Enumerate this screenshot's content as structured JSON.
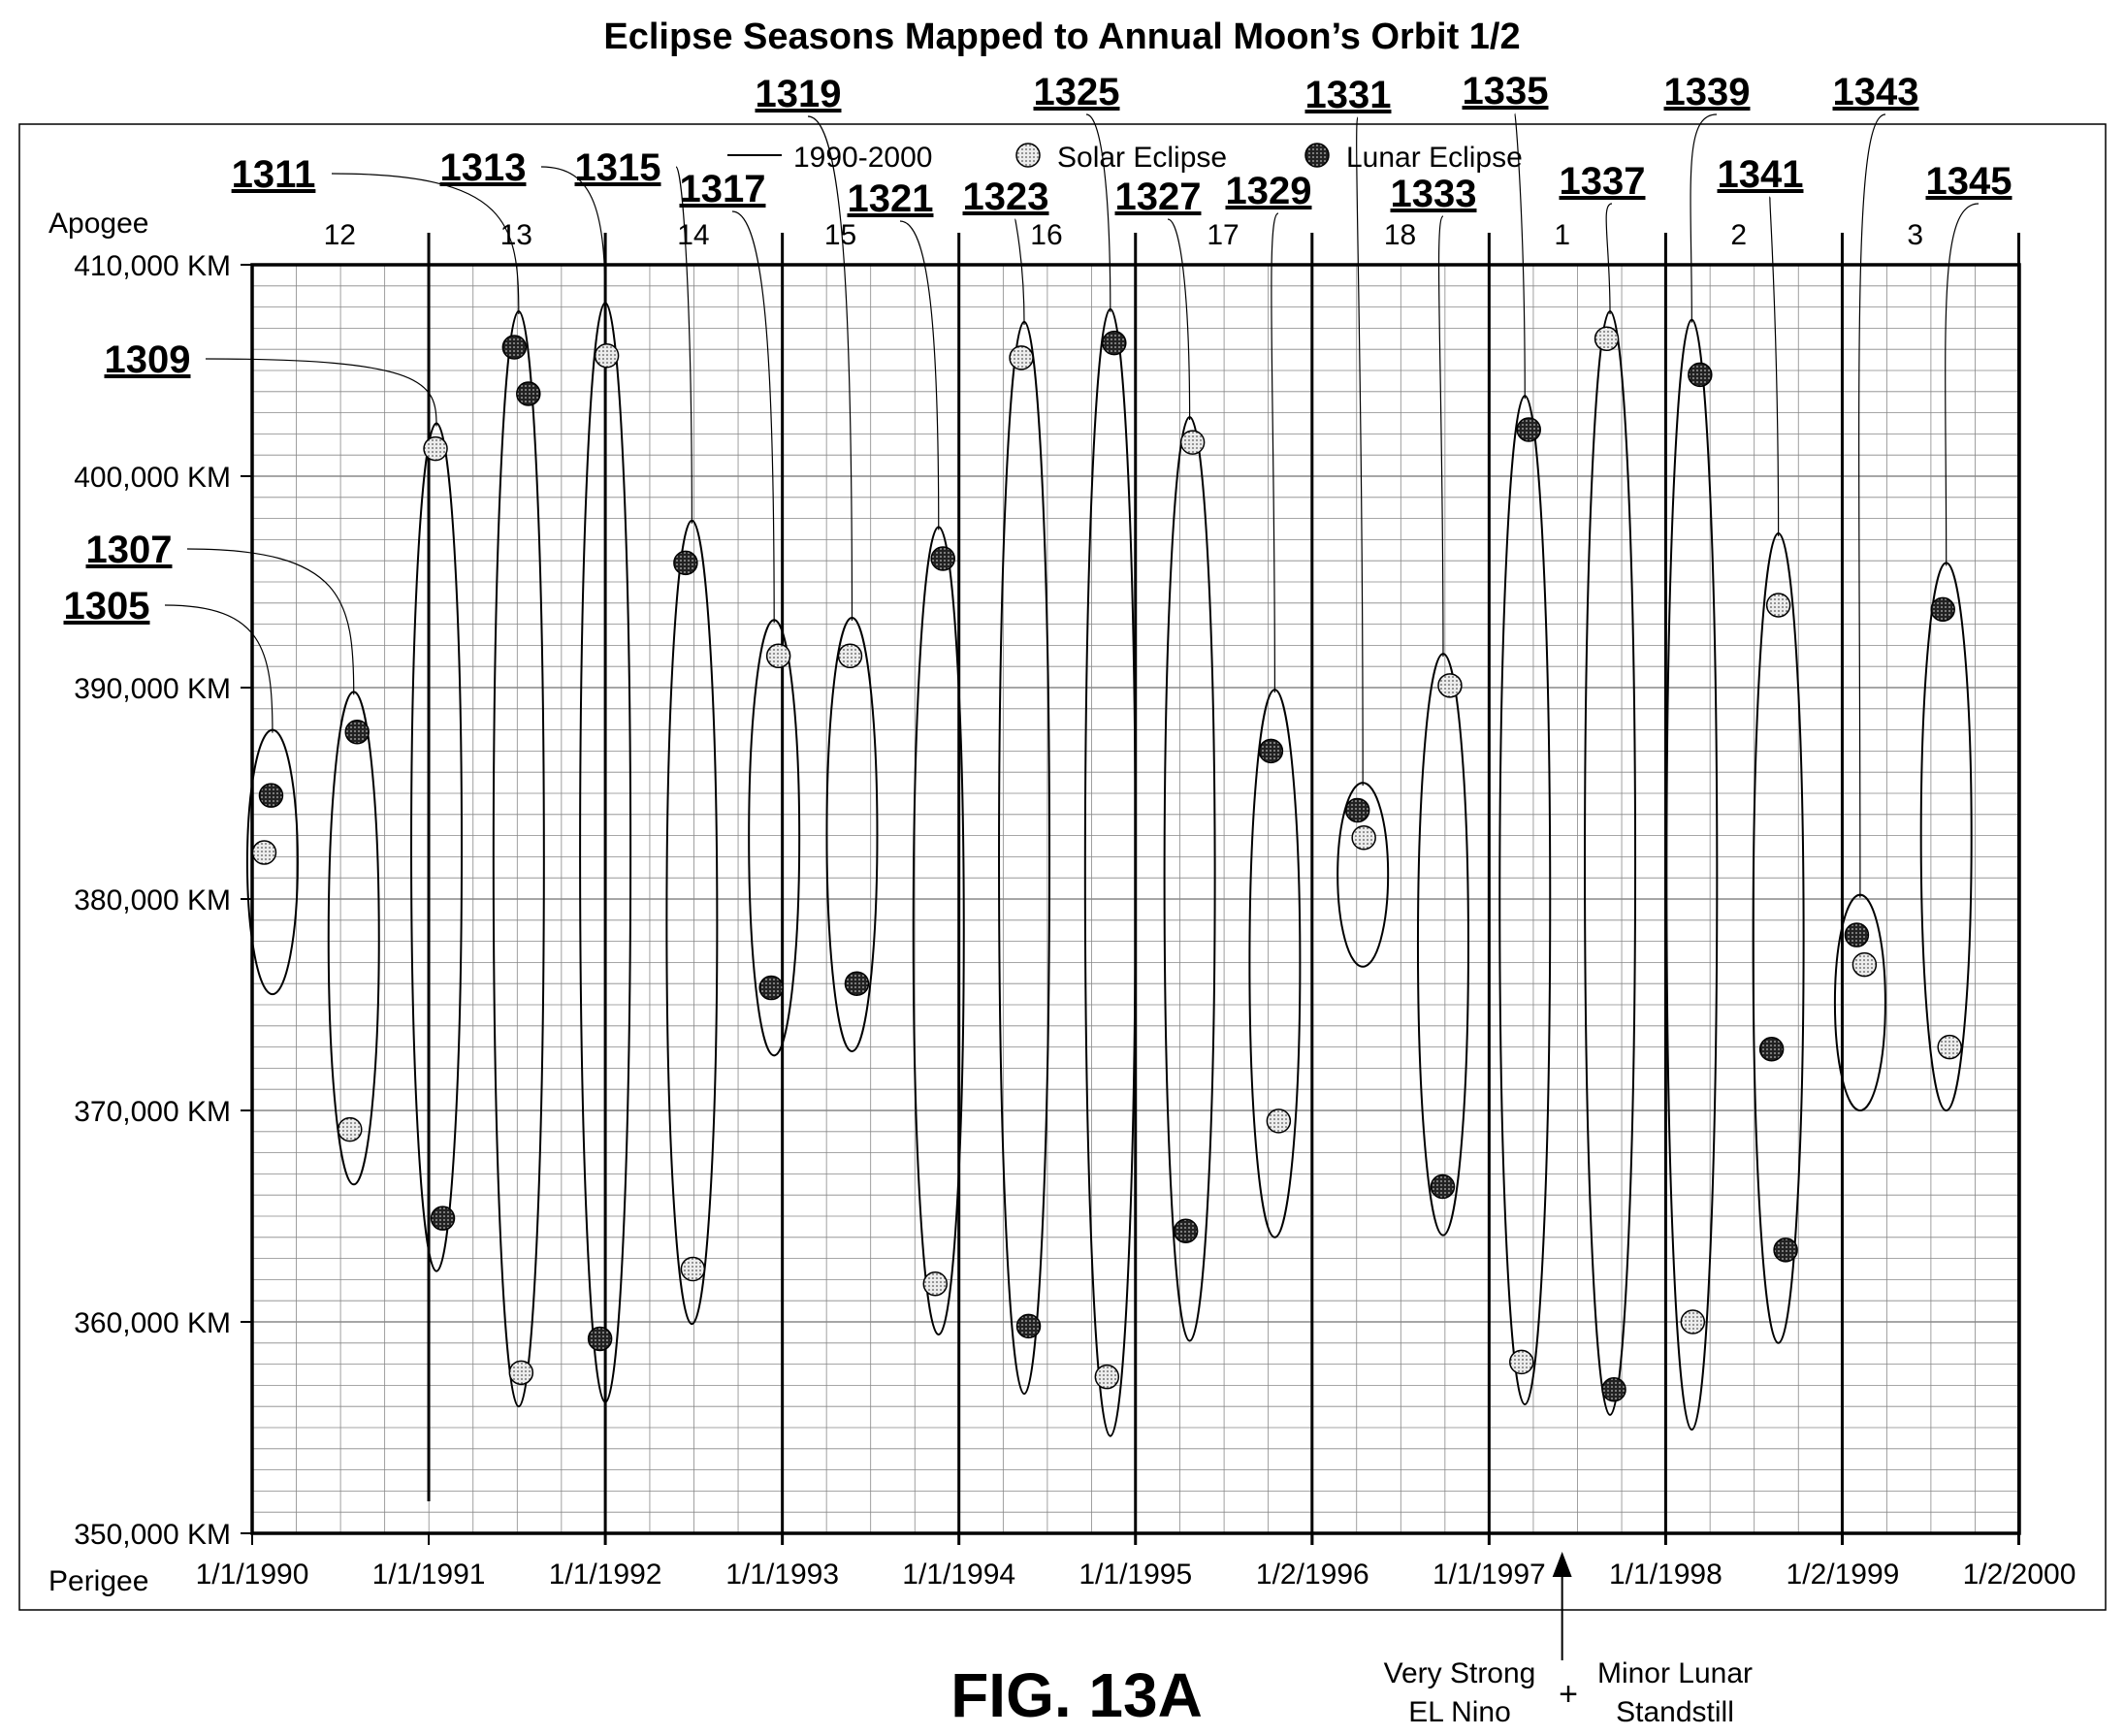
{
  "chart_data": {
    "type": "scatter",
    "title": "Eclipse Seasons Mapped to Annual Moon’s Orbit 1/2",
    "figure_label": "FIG. 13A",
    "y_top_label": "Apogee",
    "x_left_label": "Perigee",
    "ylim": [
      350000,
      410000
    ],
    "yticks": [
      {
        "value": 350000,
        "label": "350,000 KM"
      },
      {
        "value": 360000,
        "label": "360,000 KM"
      },
      {
        "value": 370000,
        "label": "370,000 KM"
      },
      {
        "value": 380000,
        "label": "380,000 KM"
      },
      {
        "value": 390000,
        "label": "390,000 KM"
      },
      {
        "value": 400000,
        "label": "400,000 KM"
      },
      {
        "value": 410000,
        "label": "410,000 KM"
      }
    ],
    "xlim": [
      "1990-01-01",
      "2000-01-02"
    ],
    "xticks": [
      {
        "value": "1990-01-01",
        "label": "1/1/1990"
      },
      {
        "value": "1991-01-01",
        "label": "1/1/1991"
      },
      {
        "value": "1992-01-01",
        "label": "1/1/1992"
      },
      {
        "value": "1993-01-01",
        "label": "1/1/1993"
      },
      {
        "value": "1994-01-01",
        "label": "1/1/1994"
      },
      {
        "value": "1995-01-01",
        "label": "1/1/1995"
      },
      {
        "value": "1996-01-02",
        "label": "1/2/1996"
      },
      {
        "value": "1997-01-01",
        "label": "1/1/1997"
      },
      {
        "value": "1998-01-01",
        "label": "1/1/1998"
      },
      {
        "value": "1999-01-02",
        "label": "1/2/1999"
      },
      {
        "value": "2000-01-02",
        "label": "1/2/2000"
      }
    ],
    "grid": true,
    "legend": {
      "position": "top",
      "items": [
        {
          "label": "1990-2000",
          "marker": "line"
        },
        {
          "label": "Solar Eclipse",
          "marker": "light-dotted-circle"
        },
        {
          "label": "Lunar Eclipse",
          "marker": "dark-dotted-circle"
        }
      ]
    },
    "cycle_markers": [
      {
        "label": "12",
        "date": "1990-07-01"
      },
      {
        "label": "13",
        "date": "1991-07-01"
      },
      {
        "label": "14",
        "date": "1992-07-01"
      },
      {
        "label": "15",
        "date": "1993-05-01"
      },
      {
        "label": "16",
        "date": "1994-07-01"
      },
      {
        "label": "17",
        "date": "1995-07-01"
      },
      {
        "label": "18",
        "date": "1996-07-01"
      },
      {
        "label": "1",
        "date": "1997-06-01"
      },
      {
        "label": "2",
        "date": "1998-06-01"
      },
      {
        "label": "3",
        "date": "1999-06-01"
      }
    ],
    "season_lines": [
      "1991-01-01",
      "1992-01-01",
      "1993-01-01",
      "1994-01-01",
      "1995-01-01",
      "1996-01-01",
      "1997-01-01",
      "1998-01-01",
      "1999-01-01",
      "2000-01-01"
    ],
    "eclipse_seasons": [
      {
        "ref": "1305",
        "date_center": "1990-02-12",
        "km_min": 375500,
        "km_max": 388000,
        "eclipses": [
          {
            "kind": "solar",
            "date": "1990-01-26",
            "km": 382200
          },
          {
            "kind": "lunar",
            "date": "1990-02-09",
            "km": 384900
          }
        ]
      },
      {
        "ref": "1307",
        "date_center": "1990-07-30",
        "km_min": 366500,
        "km_max": 389800,
        "eclipses": [
          {
            "kind": "solar",
            "date": "1990-07-22",
            "km": 369100
          },
          {
            "kind": "lunar",
            "date": "1990-08-06",
            "km": 387900
          }
        ]
      },
      {
        "ref": "1309",
        "date_center": "1991-01-17",
        "km_min": 362400,
        "km_max": 402500,
        "eclipses": [
          {
            "kind": "solar",
            "date": "1991-01-15",
            "km": 401300
          },
          {
            "kind": "lunar",
            "date": "1991-01-30",
            "km": 364900
          }
        ]
      },
      {
        "ref": "1311",
        "date_center": "1991-07-06",
        "km_min": 356000,
        "km_max": 407800,
        "eclipses": [
          {
            "kind": "solar",
            "date": "1991-07-11",
            "km": 357600
          },
          {
            "kind": "lunar",
            "date": "1991-06-27",
            "km": 406100
          },
          {
            "kind": "lunar",
            "date": "1991-07-26",
            "km": 403900
          }
        ]
      },
      {
        "ref": "1313",
        "date_center": "1992-01-01",
        "km_min": 356200,
        "km_max": 408200,
        "eclipses": [
          {
            "kind": "solar",
            "date": "1992-01-04",
            "km": 405700
          },
          {
            "kind": "lunar",
            "date": "1991-12-21",
            "km": 359200
          }
        ]
      },
      {
        "ref": "1315",
        "date_center": "1992-06-28",
        "km_min": 359900,
        "km_max": 397900,
        "eclipses": [
          {
            "kind": "solar",
            "date": "1992-06-30",
            "km": 362500
          },
          {
            "kind": "lunar",
            "date": "1992-06-15",
            "km": 395900
          }
        ]
      },
      {
        "ref": "1317",
        "date_center": "1992-12-15",
        "km_min": 372600,
        "km_max": 393200,
        "eclipses": [
          {
            "kind": "solar",
            "date": "1992-12-24",
            "km": 391500
          },
          {
            "kind": "lunar",
            "date": "1992-12-09",
            "km": 375800
          }
        ]
      },
      {
        "ref": "1319",
        "date_center": "1993-05-25",
        "km_min": 372800,
        "km_max": 393300,
        "eclipses": [
          {
            "kind": "solar",
            "date": "1993-05-21",
            "km": 391500
          },
          {
            "kind": "lunar",
            "date": "1993-06-04",
            "km": 376000
          }
        ]
      },
      {
        "ref": "1321",
        "date_center": "1993-11-20",
        "km_min": 359400,
        "km_max": 397600,
        "eclipses": [
          {
            "kind": "solar",
            "date": "1993-11-13",
            "km": 361800
          },
          {
            "kind": "lunar",
            "date": "1993-11-29",
            "km": 396100
          }
        ]
      },
      {
        "ref": "1323",
        "date_center": "1994-05-16",
        "km_min": 356600,
        "km_max": 407300,
        "eclipses": [
          {
            "kind": "solar",
            "date": "1994-05-10",
            "km": 405600
          },
          {
            "kind": "lunar",
            "date": "1994-05-25",
            "km": 359800
          }
        ]
      },
      {
        "ref": "1325",
        "date_center": "1994-11-10",
        "km_min": 354600,
        "km_max": 407900,
        "eclipses": [
          {
            "kind": "solar",
            "date": "1994-11-03",
            "km": 357400
          },
          {
            "kind": "lunar",
            "date": "1994-11-18",
            "km": 406300
          }
        ]
      },
      {
        "ref": "1327",
        "date_center": "1995-04-23",
        "km_min": 359100,
        "km_max": 402800,
        "eclipses": [
          {
            "kind": "solar",
            "date": "1995-04-29",
            "km": 401600
          },
          {
            "kind": "lunar",
            "date": "1995-04-15",
            "km": 364300
          }
        ]
      },
      {
        "ref": "1329",
        "date_center": "1995-10-16",
        "km_min": 364000,
        "km_max": 389900,
        "eclipses": [
          {
            "kind": "solar",
            "date": "1995-10-24",
            "km": 369500
          },
          {
            "kind": "lunar",
            "date": "1995-10-08",
            "km": 387000
          }
        ]
      },
      {
        "ref": "1331",
        "date_center": "1996-04-15",
        "km_min": 376800,
        "km_max": 385500,
        "eclipses": [
          {
            "kind": "solar",
            "date": "1996-04-17",
            "km": 382900
          },
          {
            "kind": "lunar",
            "date": "1996-04-04",
            "km": 384200
          }
        ]
      },
      {
        "ref": "1333",
        "date_center": "1996-09-28",
        "km_min": 364100,
        "km_max": 391600,
        "eclipses": [
          {
            "kind": "solar",
            "date": "1996-10-12",
            "km": 390100
          },
          {
            "kind": "lunar",
            "date": "1996-09-27",
            "km": 366400
          }
        ]
      },
      {
        "ref": "1335",
        "date_center": "1997-03-16",
        "km_min": 356100,
        "km_max": 403800,
        "eclipses": [
          {
            "kind": "solar",
            "date": "1997-03-09",
            "km": 358100
          },
          {
            "kind": "lunar",
            "date": "1997-03-24",
            "km": 402200
          }
        ]
      },
      {
        "ref": "1337",
        "date_center": "1997-09-08",
        "km_min": 355600,
        "km_max": 407800,
        "eclipses": [
          {
            "kind": "solar",
            "date": "1997-09-01",
            "km": 406500
          },
          {
            "kind": "lunar",
            "date": "1997-09-16",
            "km": 356800
          }
        ]
      },
      {
        "ref": "1339",
        "date_center": "1998-02-24",
        "km_min": 354900,
        "km_max": 407400,
        "eclipses": [
          {
            "kind": "solar",
            "date": "1998-02-26",
            "km": 360000
          },
          {
            "kind": "lunar",
            "date": "1998-03-13",
            "km": 404800
          }
        ]
      },
      {
        "ref": "1341",
        "date_center": "1998-08-22",
        "km_min": 359000,
        "km_max": 397300,
        "eclipses": [
          {
            "kind": "solar",
            "date": "1998-08-22",
            "km": 393900
          },
          {
            "kind": "lunar",
            "date": "1998-08-08",
            "km": 372900
          },
          {
            "kind": "lunar",
            "date": "1998-09-06",
            "km": 363400
          }
        ]
      },
      {
        "ref": "1343",
        "date_center": "1999-02-07",
        "km_min": 370000,
        "km_max": 380200,
        "eclipses": [
          {
            "kind": "solar",
            "date": "1999-02-16",
            "km": 376900
          },
          {
            "kind": "lunar",
            "date": "1999-01-31",
            "km": 378300
          }
        ]
      },
      {
        "ref": "1345",
        "date_center": "1999-08-04",
        "km_min": 370000,
        "km_max": 395900,
        "eclipses": [
          {
            "kind": "solar",
            "date": "1999-08-11",
            "km": 373000
          },
          {
            "kind": "lunar",
            "date": "1999-07-28",
            "km": 393700
          }
        ]
      }
    ],
    "annotation": {
      "date": "1997-06-01",
      "left_text": [
        "Very Strong",
        "EL Nino"
      ],
      "joiner": "+",
      "right_text": [
        "Minor Lunar",
        "Standstill"
      ]
    }
  }
}
